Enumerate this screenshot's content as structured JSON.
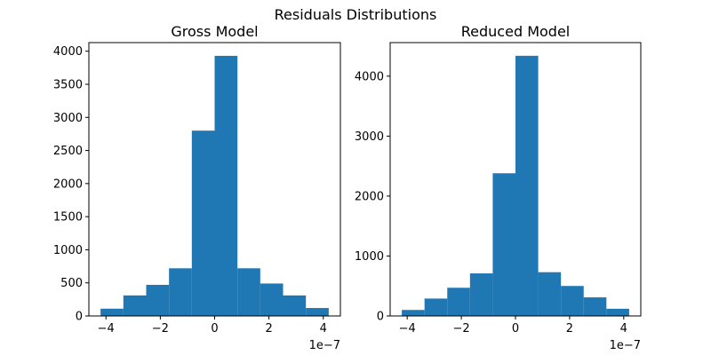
{
  "figure": {
    "suptitle": "Residuals Distributions"
  },
  "chart_data": [
    {
      "type": "bar",
      "title": "Gross Model",
      "xlabel": "",
      "ylabel": "",
      "x_offset_label": "1e−7",
      "bin_edges": [
        -4.2,
        -3.36,
        -2.52,
        -1.68,
        -0.84,
        0.0,
        0.84,
        1.68,
        2.52,
        3.36,
        4.2
      ],
      "values": [
        110,
        310,
        470,
        720,
        2800,
        3930,
        720,
        490,
        310,
        120
      ],
      "xlim": [
        -4.63,
        4.63
      ],
      "ylim": [
        0,
        4130
      ],
      "xticks": [
        -4,
        -2,
        0,
        2,
        4
      ],
      "xtick_labels": [
        "−4",
        "−2",
        "0",
        "2",
        "4"
      ],
      "yticks": [
        0,
        500,
        1000,
        1500,
        2000,
        2500,
        3000,
        3500,
        4000
      ],
      "ytick_labels": [
        "0",
        "500",
        "1000",
        "1500",
        "2000",
        "2500",
        "3000",
        "3500",
        "4000"
      ],
      "bar_color": "#1f77b4",
      "grid": false
    },
    {
      "type": "bar",
      "title": "Reduced Model",
      "xlabel": "",
      "ylabel": "",
      "x_offset_label": "1e−7",
      "bin_edges": [
        -4.2,
        -3.36,
        -2.52,
        -1.68,
        -0.84,
        0.0,
        0.84,
        1.68,
        2.52,
        3.36,
        4.2
      ],
      "values": [
        100,
        290,
        470,
        710,
        2380,
        4340,
        730,
        500,
        310,
        120
      ],
      "xlim": [
        -4.63,
        4.63
      ],
      "ylim": [
        0,
        4560
      ],
      "xticks": [
        -4,
        -2,
        0,
        2,
        4
      ],
      "xtick_labels": [
        "−4",
        "−2",
        "0",
        "2",
        "4"
      ],
      "yticks": [
        0,
        1000,
        2000,
        3000,
        4000
      ],
      "ytick_labels": [
        "0",
        "1000",
        "2000",
        "3000",
        "4000"
      ],
      "bar_color": "#1f77b4",
      "grid": false
    }
  ]
}
